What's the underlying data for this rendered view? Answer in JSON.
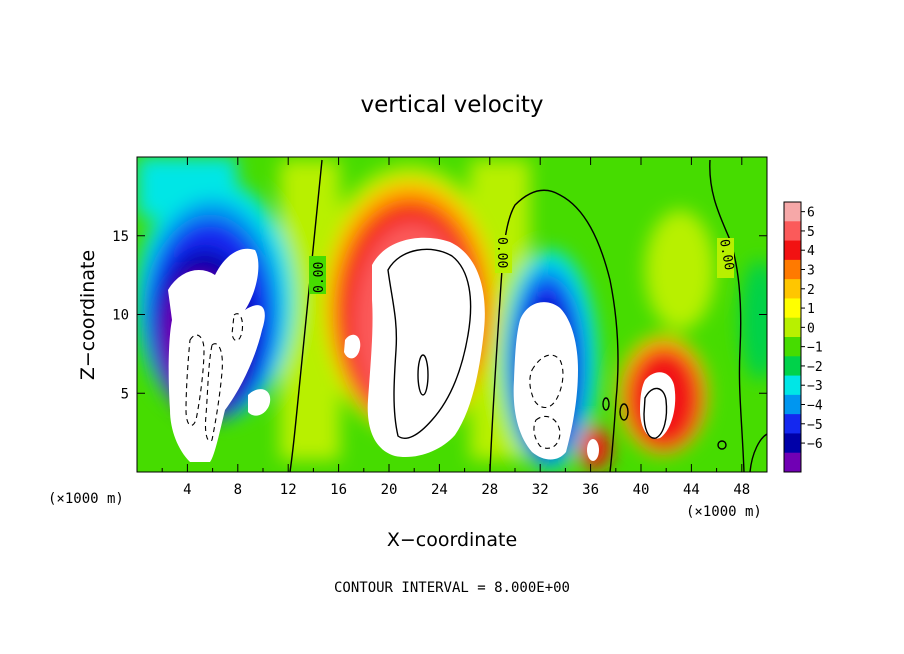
{
  "chart_data": {
    "type": "heatmap",
    "title": "vertical velocity",
    "xlabel": "X−coordinate",
    "ylabel": "Z−coordinate",
    "x_unit": "(×1000 m)",
    "xlim": [
      0,
      50
    ],
    "ylim": [
      0,
      20
    ],
    "x_ticks": [
      "4",
      "8",
      "12",
      "16",
      "20",
      "24",
      "28",
      "32",
      "36",
      "40",
      "44",
      "48"
    ],
    "y_ticks": [
      "5",
      "10",
      "15"
    ],
    "contour_label": "0.00",
    "footer": "CONTOUR INTERVAL = 8.000E+00",
    "colorbar": {
      "ticks": [
        "6",
        "5",
        "4",
        "3",
        "2",
        "1",
        "0",
        "−1",
        "−2",
        "−3",
        "−4",
        "−5",
        "−6"
      ],
      "colors": [
        "#f6a8a8",
        "#fb5a5a",
        "#f21212",
        "#ff7a00",
        "#ffc600",
        "#ffff00",
        "#b8f000",
        "#46dc00",
        "#00d24a",
        "#00e6e6",
        "#0096f0",
        "#1428f0",
        "#0000a8",
        "#7000b4"
      ]
    },
    "cells": [
      {
        "x": 7,
        "z": 10,
        "w": -9
      },
      {
        "x": 3,
        "z": 13,
        "w": -4.5
      },
      {
        "x": 10,
        "z": 9,
        "w": -4.5
      },
      {
        "x": 5,
        "z": 4,
        "w": -8
      },
      {
        "x": 15,
        "z": 10,
        "w": 0
      },
      {
        "x": 22,
        "z": 10,
        "w": 9
      },
      {
        "x": 19,
        "z": 6,
        "w": 5
      },
      {
        "x": 23,
        "z": 16,
        "w": 4.5
      },
      {
        "x": 29,
        "z": 12,
        "w": 0
      },
      {
        "x": 32,
        "z": 6,
        "w": -9
      },
      {
        "x": 31,
        "z": 11,
        "w": -4.5
      },
      {
        "x": 36,
        "z": 1.5,
        "w": 7
      },
      {
        "x": 41,
        "z": 4,
        "w": 8
      },
      {
        "x": 43,
        "z": 10,
        "w": 2
      },
      {
        "x": 47,
        "z": 14,
        "w": 0
      },
      {
        "x": 49,
        "z": 8,
        "w": -2.5
      },
      {
        "x": 5,
        "z": 18,
        "w": -1
      },
      {
        "x": 12,
        "z": 18,
        "w": 0.5
      },
      {
        "x": 26,
        "z": 1,
        "w": -2
      }
    ]
  }
}
